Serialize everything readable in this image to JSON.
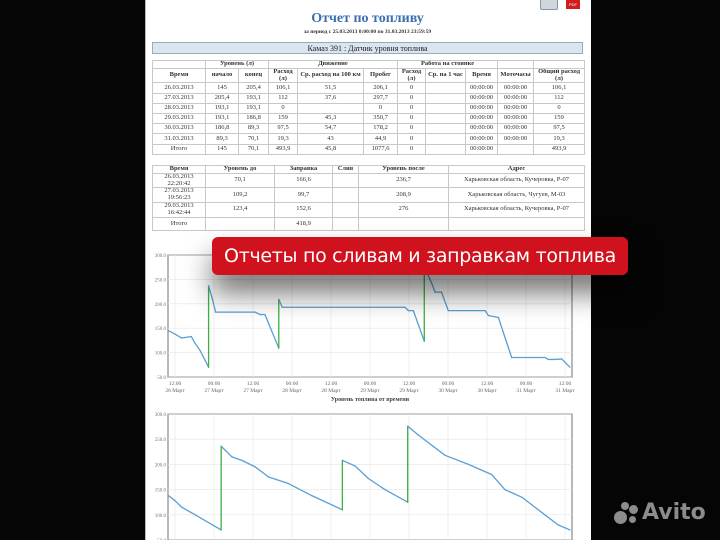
{
  "report": {
    "title": "Отчет по топливу",
    "period": "за период с 25.03.2013 0:00:00 по 31.03.2013 23:59:59",
    "vehicle_header": "Камаз 391 : Датчик уровня топлива",
    "print_icon": "printer-icon",
    "pdf_icon": "pdf-icon",
    "pdf_label": "PDF"
  },
  "summary_table": {
    "group_headers": [
      "Уровень (л)",
      "Движение",
      "Работа на стоянке"
    ],
    "columns": [
      "Время",
      "начало",
      "конец",
      "Расход (л)",
      "Ср. расход на 100 км",
      "Пробег",
      "Расход (л)",
      "Ср. на 1 час",
      "Время",
      "Моточасы",
      "Общий расход (л)"
    ],
    "rows": [
      [
        "26.03.2013",
        "145",
        "205,4",
        "106,1",
        "51,5",
        "206,1",
        "0",
        "",
        "00:00:00",
        "00:00:00",
        "106,1"
      ],
      [
        "27.03.2013",
        "205,4",
        "193,1",
        "112",
        "37,6",
        "297,7",
        "0",
        "",
        "00:00:00",
        "00:00:00",
        "112"
      ],
      [
        "28.03.2013",
        "193,1",
        "193,1",
        "0",
        "",
        "0",
        "0",
        "",
        "00:00:00",
        "00:00:00",
        "0"
      ],
      [
        "29.03.2013",
        "193,1",
        "186,8",
        "159",
        "45,3",
        "350,7",
        "0",
        "",
        "00:00:00",
        "00:00:00",
        "159"
      ],
      [
        "30.03.2013",
        "186,8",
        "89,3",
        "97,5",
        "54,7",
        "178,2",
        "0",
        "",
        "00:00:00",
        "00:00:00",
        "97,5"
      ],
      [
        "31.03.2013",
        "89,3",
        "70,1",
        "19,3",
        "43",
        "44,9",
        "0",
        "",
        "00:00:00",
        "00:00:00",
        "19,3"
      ],
      [
        "Итого",
        "145",
        "70,1",
        "493,9",
        "45,8",
        "1077,6",
        "0",
        "",
        "00:00:00",
        "",
        "493,9"
      ]
    ]
  },
  "refuel_table": {
    "columns": [
      "Время",
      "Уровень до",
      "Заправка",
      "Слив",
      "Уровень после",
      "Адрес"
    ],
    "rows": [
      [
        "26.03.2013 22:20:42",
        "70,1",
        "166,6",
        "",
        "236,7",
        "Харьковская область, Кучеровка, Р-07"
      ],
      [
        "27.03.2013 19:56:23",
        "109,2",
        "99,7",
        "",
        "208,9",
        "Харьковская область, Чугуев, М-03"
      ],
      [
        "29.03.2013 16:42:44",
        "123,4",
        "152,6",
        "",
        "276",
        "Харьковская область, Кучеровка, Р-07"
      ],
      [
        "Итого",
        "",
        "418,9",
        "",
        "",
        ""
      ]
    ]
  },
  "banner": {
    "text": "Отчеты по сливам и заправкам топлива",
    "color": "#d0121f"
  },
  "watermark": {
    "text": "Avito"
  },
  "chart_data": [
    {
      "type": "line",
      "title": "Уровень топлива от времени",
      "ylim": [
        50,
        300
      ],
      "yticks": [
        "300.0",
        "250.0",
        "200.0",
        "150.0",
        "100.0",
        "50.0"
      ],
      "xticks": [
        [
          "12:00",
          "26 Март"
        ],
        [
          "00:00",
          "27 Март"
        ],
        [
          "12:00",
          "27 Март"
        ],
        [
          "00:00",
          "28 Март"
        ],
        [
          "12:00",
          "28 Март"
        ],
        [
          "00:00",
          "29 Март"
        ],
        [
          "12:00",
          "29 Март"
        ],
        [
          "00:00",
          "30 Март"
        ],
        [
          "12:00",
          "30 Март"
        ],
        [
          "00:00",
          "31 Март"
        ],
        [
          "12:00",
          "31 Март"
        ]
      ],
      "grid": true,
      "colors": {
        "level": "#5a9fd4",
        "refuel": "#3cb043"
      },
      "points": [
        [
          "26.03 10:00",
          145
        ],
        [
          "26.03 12:00",
          138
        ],
        [
          "26.03 14:00",
          130
        ],
        [
          "26.03 17:00",
          133
        ],
        [
          "26.03 18:00",
          121
        ],
        [
          "26.03 19:45",
          104
        ],
        [
          "26.03 22:20",
          70.1
        ],
        [
          "26.03 22:20",
          236.7
        ],
        [
          "26.03 23:20",
          214
        ],
        [
          "27.03 00:30",
          183
        ],
        [
          "27.03 12:40",
          183
        ],
        [
          "27.03 14:10",
          178
        ],
        [
          "27.03 15:40",
          178
        ],
        [
          "27.03 19:56",
          109.2
        ],
        [
          "27.03 19:56",
          208.9
        ],
        [
          "27.03 21:00",
          193
        ],
        [
          "29.03 10:45",
          193
        ],
        [
          "29.03 11:50",
          186
        ],
        [
          "29.03 13:20",
          186
        ],
        [
          "29.03 16:42",
          123.4
        ],
        [
          "29.03 16:42",
          276
        ],
        [
          "29.03 19:00",
          242
        ],
        [
          "29.03 20:00",
          224
        ],
        [
          "29.03 22:00",
          224
        ],
        [
          "30.03 00:05",
          186
        ],
        [
          "30.03 11:25",
          186
        ],
        [
          "30.03 12:25",
          176
        ],
        [
          "30.03 15:30",
          172
        ],
        [
          "30.03 19:35",
          90
        ],
        [
          "31.03 05:50",
          90
        ],
        [
          "31.03 06:50",
          86
        ],
        [
          "31.03 09:00",
          86
        ],
        [
          "31.03 11:00",
          87
        ],
        [
          "31.03 13:30",
          70.1
        ]
      ]
    },
    {
      "type": "line",
      "ylim": [
        50,
        300
      ],
      "yticks": [
        "300.0",
        "250.0",
        "200.0",
        "150.0",
        "100.0",
        "50.0"
      ],
      "grid": true,
      "colors": {
        "level": "#5a9fd4",
        "refuel": "#3cb043"
      },
      "points": [
        [
          "26.03 10:00",
          138
        ],
        [
          "26.03 12:00",
          128
        ],
        [
          "26.03 14:06",
          115
        ],
        [
          "26.03 18:12",
          100
        ],
        [
          "27.03 02:12",
          70
        ],
        [
          "27.03 02:12",
          236
        ],
        [
          "27.03 05:30",
          215
        ],
        [
          "27.03 08:36",
          208
        ],
        [
          "27.03 12:42",
          195
        ],
        [
          "27.03 16:48",
          175
        ],
        [
          "27.03 22:54",
          162
        ],
        [
          "28.03 06:06",
          138
        ],
        [
          "28.03 15:30",
          110
        ],
        [
          "28.03 15:30",
          208
        ],
        [
          "28.03 19:24",
          197
        ],
        [
          "28.03 23:30",
          172
        ],
        [
          "29.03 04:36",
          150
        ],
        [
          "29.03 11:36",
          125
        ],
        [
          "29.03 11:36",
          276
        ],
        [
          "29.03 14:54",
          258
        ],
        [
          "29.03 23:06",
          218
        ],
        [
          "30.03 06:18",
          200
        ],
        [
          "30.03 13:24",
          180
        ],
        [
          "30.03 17:30",
          150
        ],
        [
          "30.03 22:42",
          135
        ],
        [
          "31.03 05:48",
          100
        ],
        [
          "31.03 09:54",
          80
        ],
        [
          "31.03 13:30",
          70
        ]
      ]
    }
  ]
}
